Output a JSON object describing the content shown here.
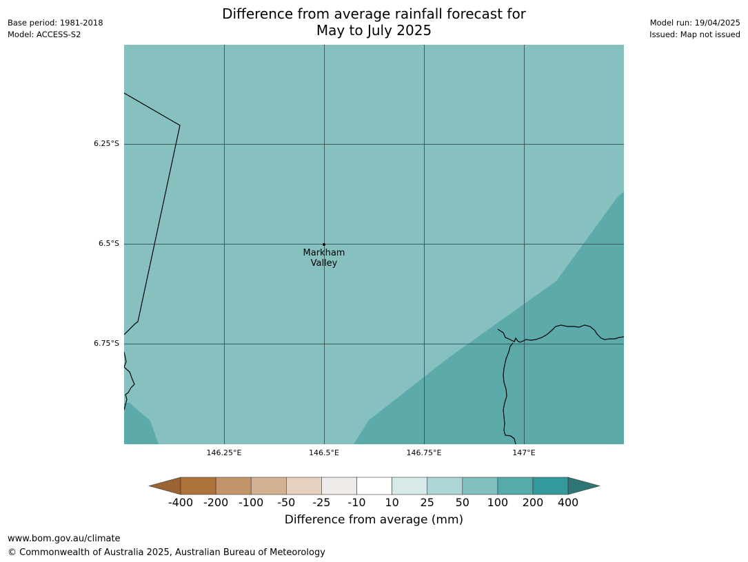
{
  "title": {
    "line1": "Difference from average rainfall forecast for",
    "line2": "May to July 2025"
  },
  "meta_left": {
    "base_period": "Base period: 1981-2018",
    "model": "Model: ACCESS-S2"
  },
  "meta_right": {
    "model_run": "Model run: 19/04/2025",
    "issued": "Issued: Map not issued"
  },
  "map": {
    "latitude_labels": [
      "6.25°S",
      "6.5°S",
      "6.75°S"
    ],
    "longitude_labels": [
      "146.25°E",
      "146.5°E",
      "146.75°E",
      "147°E"
    ],
    "place": {
      "line1": "Markham",
      "line2": "Valley"
    },
    "background_color": "#86c1c0",
    "wetter_region_color": "#5daaab"
  },
  "colorbar": {
    "label": "Difference from average (mm)",
    "ticks": [
      "-400",
      "-200",
      "-100",
      "-50",
      "-25",
      "-10",
      "10",
      "25",
      "50",
      "100",
      "200",
      "400"
    ],
    "colors": [
      "#9c6432",
      "#ae733b",
      "#c39469",
      "#d4b191",
      "#e5d1bd",
      "#efebe8",
      "#ffffff",
      "#d7eaea",
      "#add6d6",
      "#84bfbf",
      "#57aaaa",
      "#33999b",
      "#2f7574"
    ]
  },
  "footer": {
    "url": "www.bom.gov.au/climate",
    "copyright": "© Commonwealth of Australia 2025, Australian Bureau of Meteorology"
  }
}
